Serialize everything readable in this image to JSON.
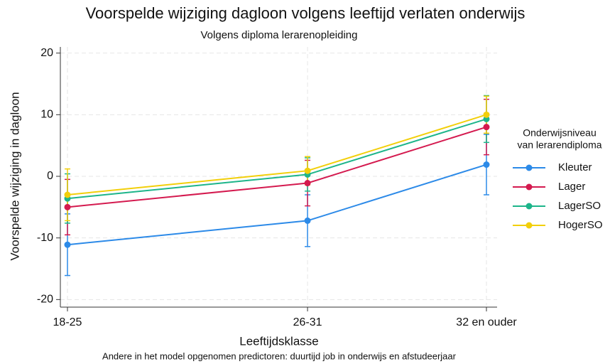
{
  "chart_data": {
    "type": "line",
    "title": "Voorspelde wijziging dagloon volgens leeftijd verlaten onderwijs",
    "subtitle": "Volgens diploma lerarenopleiding",
    "x_label": "Leeftijdsklasse",
    "y_label": "Voorspelde wijziging in dagloon",
    "note": "Andere in het model opgenomen predictoren: duurtijd job in onderwijs en afstudeerjaar",
    "legend_title": [
      "Onderwijsniveau",
      "van lerarendiploma"
    ],
    "legend_position": "right",
    "grid": true,
    "categories": [
      "18-25",
      "26-31",
      "32 en ouder"
    ],
    "ylim": [
      -21,
      21
    ],
    "yticks": [
      -20,
      -10,
      0,
      10,
      20
    ],
    "series": [
      {
        "name": "Kleuter",
        "color": "#2c8ae8",
        "values": [
          -11.1,
          -7.2,
          1.9
        ],
        "errors": [
          5.0,
          4.2,
          4.9
        ]
      },
      {
        "name": "Lager",
        "color": "#d41a4f",
        "values": [
          -5.0,
          -1.1,
          8.0
        ],
        "errors": [
          4.5,
          3.7,
          4.5
        ]
      },
      {
        "name": "LagerSO",
        "color": "#1db58a",
        "values": [
          -3.6,
          0.3,
          9.3
        ],
        "errors": [
          4.0,
          2.7,
          3.8
        ]
      },
      {
        "name": "HogerSO",
        "color": "#f2cf0a",
        "values": [
          -3.0,
          0.9,
          10.0
        ],
        "errors": [
          4.2,
          2.3,
          3.0
        ]
      }
    ]
  }
}
